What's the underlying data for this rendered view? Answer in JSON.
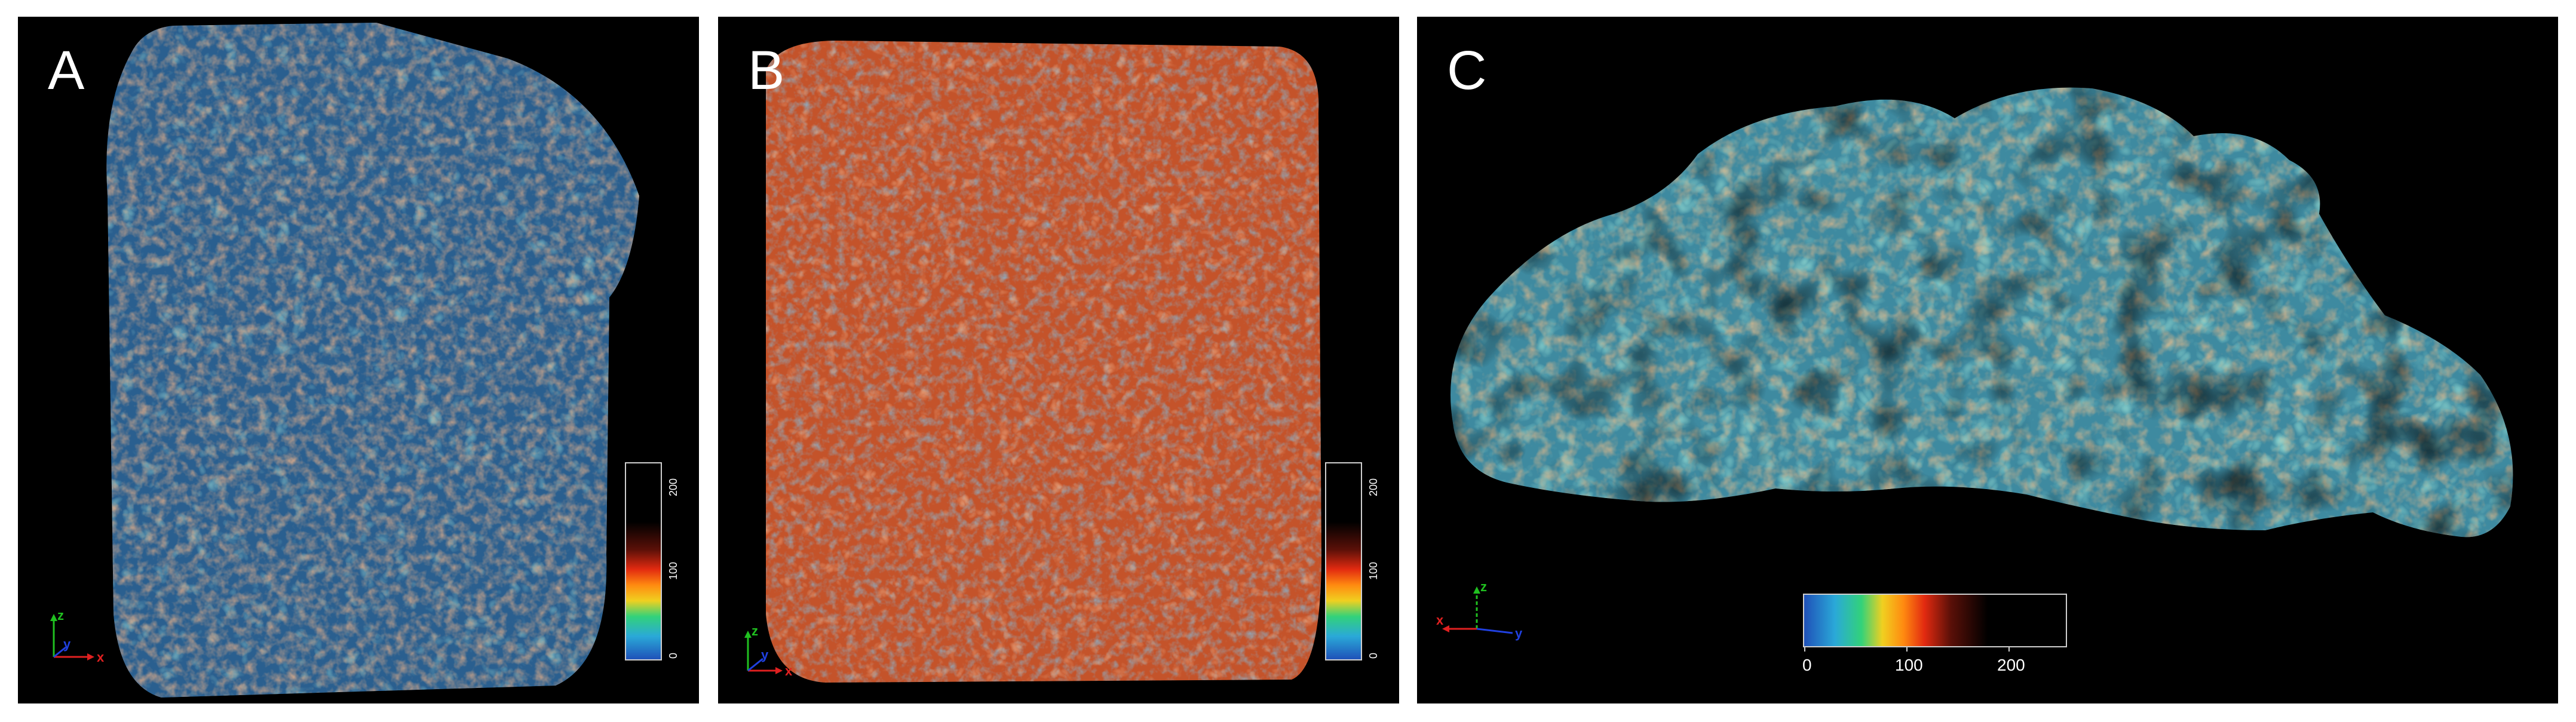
{
  "panels": [
    {
      "letter": "A",
      "dominant": "#3a78a8",
      "secondary": "#d8603a",
      "axes": {
        "x": "x",
        "y": "y",
        "z": "z"
      },
      "colorbar": {
        "orientation": "vertical",
        "ticks": [
          "0",
          "100",
          "200"
        ]
      }
    },
    {
      "letter": "B",
      "dominant": "#c4532a",
      "secondary": "#3d7fa0",
      "axes": {
        "x": "x",
        "y": "y",
        "z": "z"
      },
      "colorbar": {
        "orientation": "vertical",
        "ticks": [
          "0",
          "100",
          "200"
        ]
      }
    },
    {
      "letter": "C",
      "dominant": "#3e8aa0",
      "secondary": "#d0703a",
      "axes": {
        "x": "x",
        "y": "y",
        "z": "z"
      },
      "colorbar": {
        "orientation": "horizontal",
        "ticks": [
          "0",
          "100",
          "200"
        ]
      }
    }
  ],
  "colormap": [
    "#1f4fb8",
    "#2aa9d8",
    "#32d27a",
    "#f0d020",
    "#ff8a10",
    "#e22a10",
    "#5a1008",
    "#000000"
  ],
  "axis_colors": {
    "x": "#e02020",
    "y": "#2040e0",
    "z": "#20c020"
  }
}
